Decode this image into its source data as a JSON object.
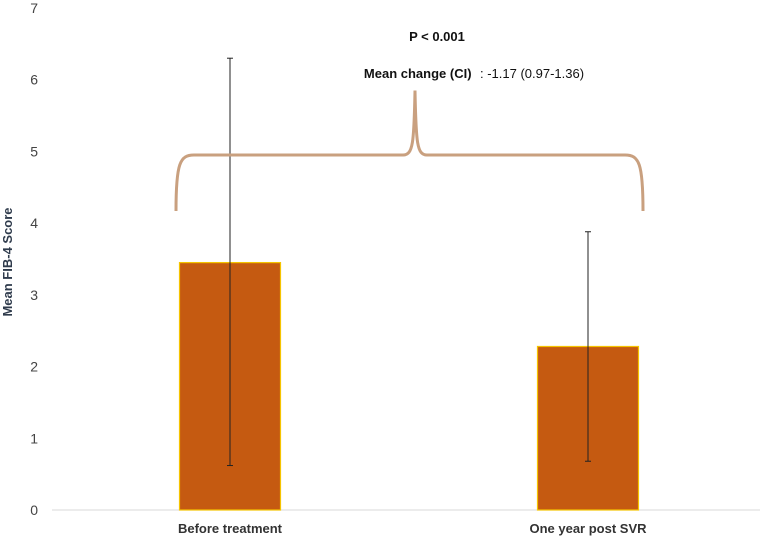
{
  "chart_data": {
    "type": "bar",
    "categories": [
      "Before treatment",
      "One year post SVR"
    ],
    "values": [
      3.45,
      2.28
    ],
    "error_low": [
      0.62,
      0.68
    ],
    "error_high": [
      6.3,
      3.88
    ],
    "ylabel": "Mean FIB-4 Score",
    "xlabel": "",
    "ylim": [
      0,
      7
    ],
    "yticks": [
      "0",
      "1",
      "2",
      "3",
      "4",
      "5",
      "6",
      "7"
    ],
    "grid": false,
    "legend": "none",
    "bar_color": "#c55a11",
    "bar_edge_color": "#f5c400",
    "bracket_color": "#c9a07f",
    "bracket_level": 4.95,
    "bracket_ends": 4.17,
    "bracket_peak": 5.85,
    "annotations": {
      "p_value": "P < 0.001",
      "mean_change_label": "Mean change (CI)",
      "mean_change_value": ": -1.17 (0.97-1.36)"
    }
  }
}
